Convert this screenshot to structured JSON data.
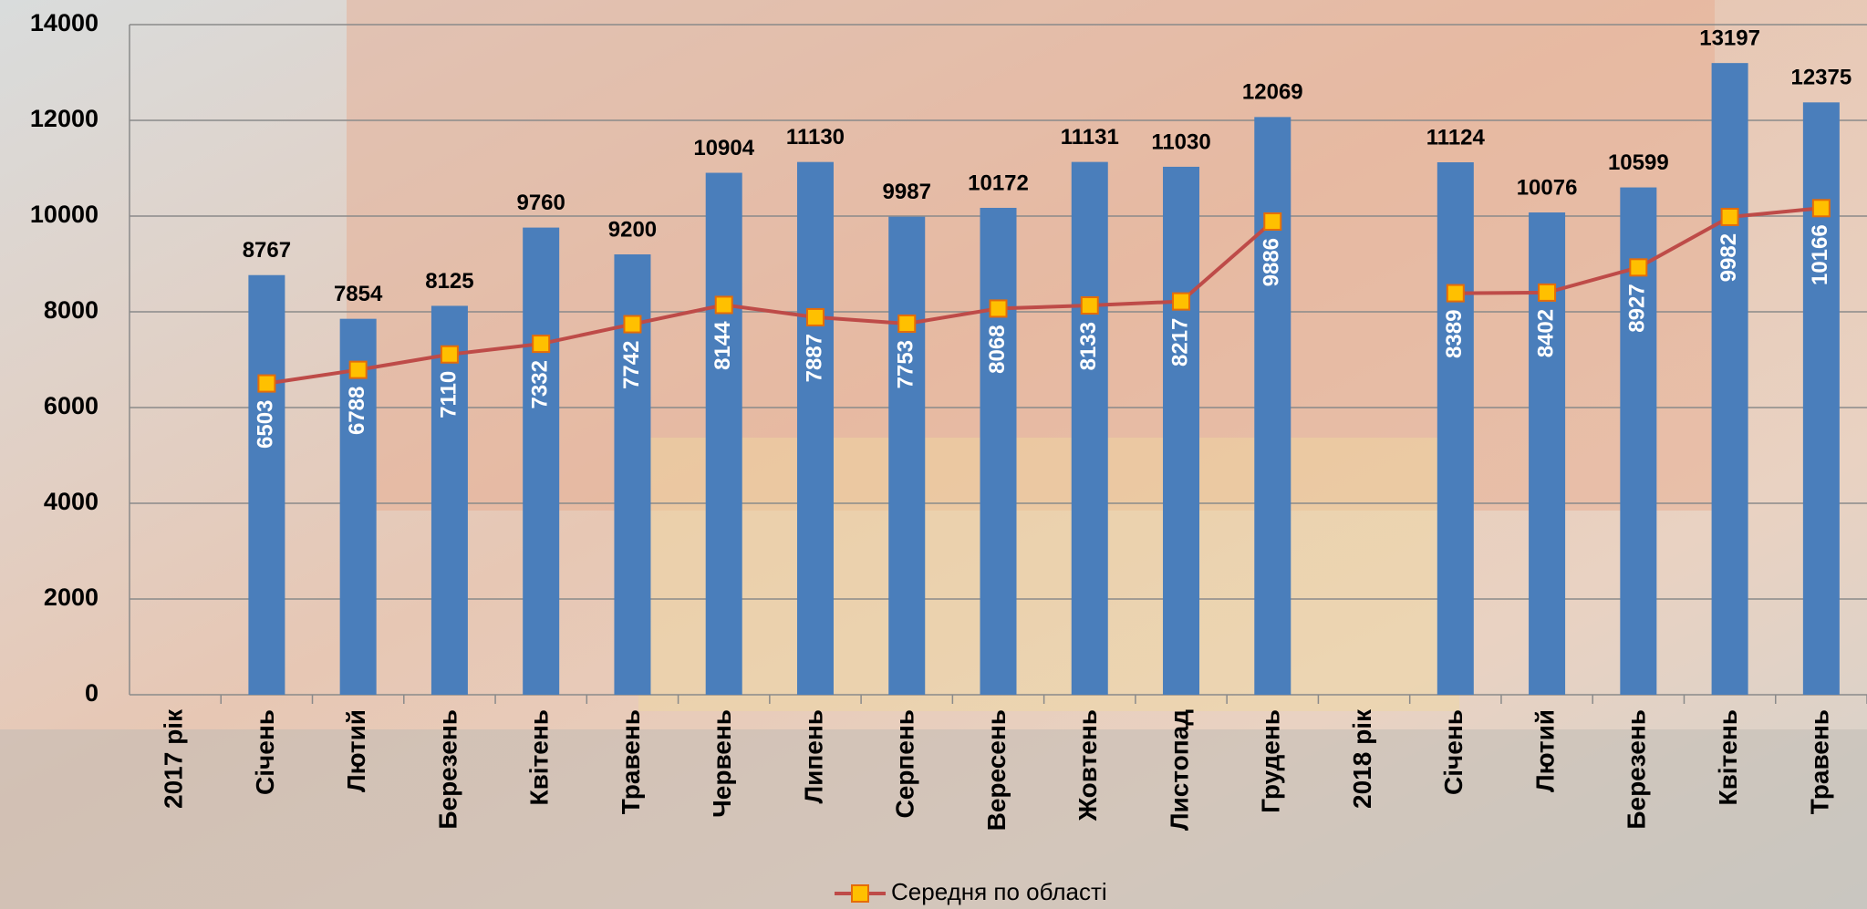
{
  "chart_data": {
    "type": "bar",
    "categories": [
      "2017 рік",
      "Січень",
      "Лютий",
      "Березень",
      "Квітень",
      "Травень",
      "Червень",
      "Липень",
      "Серпень",
      "Вересень",
      "Жовтень",
      "Листопад",
      "Грудень",
      "2018 рік",
      "Січень",
      "Лютий",
      "Березень",
      "Квітень",
      "Травень"
    ],
    "series": [
      {
        "type": "bar",
        "color": "#4a7ebb",
        "values": [
          null,
          8767,
          7854,
          8125,
          9760,
          9200,
          10904,
          11130,
          9987,
          10172,
          11131,
          11030,
          12069,
          null,
          11124,
          10076,
          10599,
          13197,
          12375
        ]
      },
      {
        "type": "line",
        "name": "Середня по області",
        "color": "#be4b48",
        "marker_color": "#ffc000",
        "values": [
          null,
          6503,
          6788,
          7110,
          7332,
          7742,
          8144,
          7887,
          7753,
          8068,
          8133,
          8217,
          9886,
          null,
          8389,
          8402,
          8927,
          9982,
          10166
        ]
      }
    ],
    "ylim": [
      0,
      14000
    ],
    "yticks": [
      0,
      2000,
      4000,
      6000,
      8000,
      10000,
      12000,
      14000
    ],
    "grid": true,
    "legend": "bottom"
  }
}
